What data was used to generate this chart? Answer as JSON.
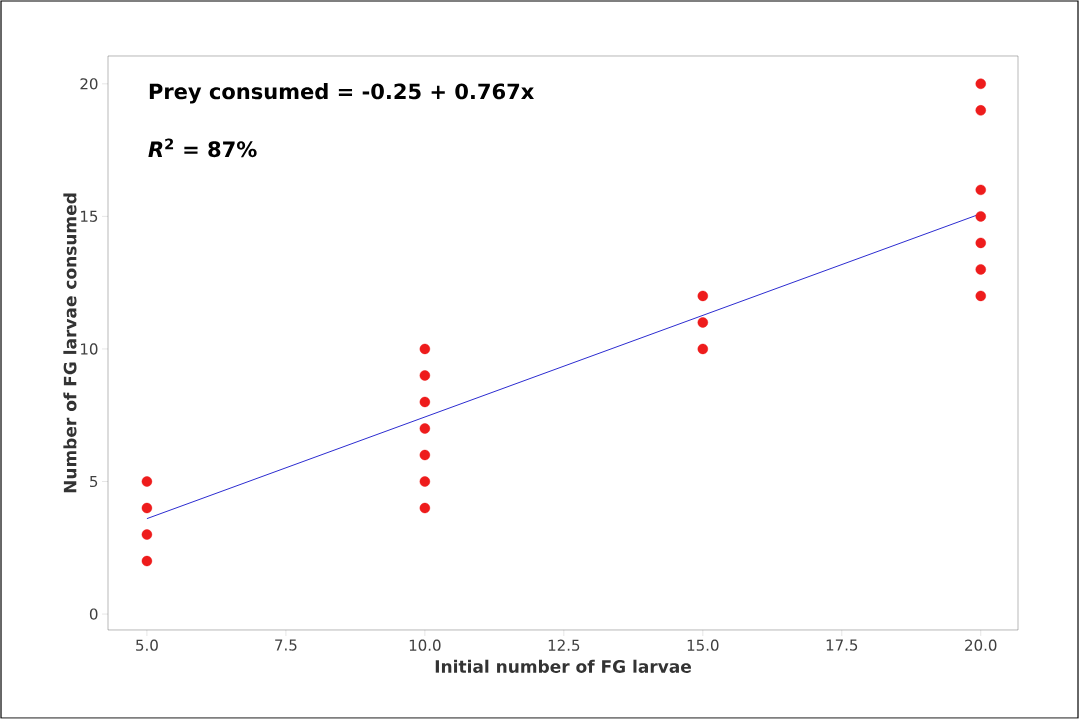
{
  "chart_data": {
    "type": "scatter",
    "xlabel": "Initial number of FG larvae",
    "ylabel": "Number of FG larvae consumed",
    "annotations": [
      "Prey consumed = -0.25 + 0.767x",
      "*R*$^{2}$ = 87%"
    ],
    "series": [
      {
        "color": "#ee1c1c",
        "marker": "circle",
        "x": [
          5,
          5,
          5,
          5,
          10,
          10,
          10,
          10,
          10,
          10,
          10,
          15,
          15,
          15,
          20,
          20,
          20,
          20,
          20,
          20,
          20
        ],
        "values": [
          2,
          3,
          4,
          5,
          4,
          5,
          6,
          7,
          8,
          9,
          10,
          10,
          11,
          12,
          12,
          13,
          14,
          15,
          16,
          19,
          20
        ]
      },
      {
        "type": "line",
        "color": "#2b2bd0",
        "marker": "none",
        "x": [
          5,
          20
        ],
        "values": [
          3.6,
          15.1
        ]
      }
    ],
    "xlim": [
      4.3,
      20.67
    ],
    "ylim": [
      -0.6,
      21.05
    ],
    "xticks": [
      {
        "value": 5,
        "label": "5.0"
      },
      {
        "value": 7.5,
        "label": "7.5"
      },
      {
        "value": 10,
        "label": "10.0"
      },
      {
        "value": 12.5,
        "label": "12.5"
      },
      {
        "value": 15,
        "label": "15.0"
      },
      {
        "value": 17.5,
        "label": "17.5"
      },
      {
        "value": 20,
        "label": "20.0"
      }
    ],
    "yticks": [
      0,
      5,
      10,
      15,
      20
    ]
  }
}
